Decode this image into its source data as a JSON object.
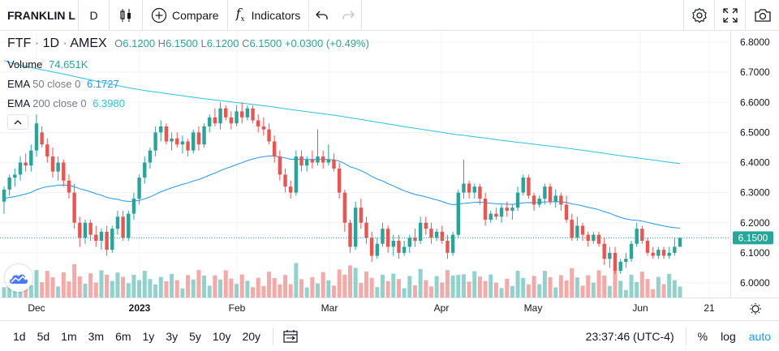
{
  "toolbar": {
    "symbol": "FRANKLIN L",
    "interval": "D",
    "compare_label": "Compare",
    "indicators_label": "Indicators"
  },
  "legend": {
    "ticker": "FTF",
    "interval": "1D",
    "exchange": "AMEX",
    "o_label": "O",
    "o_value": "6.1200",
    "h_label": "H",
    "h_value": "6.1500",
    "l_label": "L",
    "l_value": "6.1200",
    "c_label": "C",
    "c_value": "6.1500",
    "change": "+0.0300 (+0.49%)",
    "volume_label": "Volume",
    "volume_value": "74.651K",
    "ema50_label": "EMA",
    "ema50_params": "50 close 0",
    "ema50_value": "6.1727",
    "ema200_label": "EMA",
    "ema200_params": "200 close 0",
    "ema200_value": "6.3980"
  },
  "price_axis": [
    "6.8000",
    "6.7000",
    "6.6000",
    "6.5000",
    "6.4000",
    "6.3000",
    "6.2000",
    "6.1000",
    "6.0000"
  ],
  "last_price": "6.1500",
  "time_axis": [
    "Dec",
    "2023",
    "Feb",
    "Mar",
    "Apr",
    "May",
    "Jun",
    "21"
  ],
  "bottom": {
    "ranges": [
      "1d",
      "5d",
      "1m",
      "3m",
      "6m",
      "1y",
      "3y",
      "5y",
      "10y",
      "20y"
    ],
    "time": "23:37:46 (UTC-4)",
    "percent": "%",
    "log": "log",
    "auto": "auto"
  },
  "colors": {
    "up": "#26a69a",
    "down": "#ef5350",
    "ema50": "#2196f3",
    "ema200": "#26c6da",
    "accent": "#2196f3"
  },
  "chart_data": {
    "type": "candlestick",
    "ylim": [
      5.97,
      6.82
    ],
    "series": [
      {
        "name": "FTF",
        "ohlc": [
          [
            6.27,
            6.32,
            6.23,
            6.31
          ],
          [
            6.31,
            6.36,
            6.29,
            6.35
          ],
          [
            6.35,
            6.38,
            6.32,
            6.36
          ],
          [
            6.36,
            6.42,
            6.34,
            6.4
          ],
          [
            6.4,
            6.43,
            6.37,
            6.39
          ],
          [
            6.39,
            6.46,
            6.37,
            6.44
          ],
          [
            6.44,
            6.56,
            6.42,
            6.53
          ],
          [
            6.5,
            6.52,
            6.45,
            6.46
          ],
          [
            6.46,
            6.48,
            6.4,
            6.42
          ],
          [
            6.42,
            6.45,
            6.35,
            6.37
          ],
          [
            6.37,
            6.42,
            6.34,
            6.4
          ],
          [
            6.4,
            6.41,
            6.32,
            6.34
          ],
          [
            6.34,
            6.36,
            6.28,
            6.3
          ],
          [
            6.3,
            6.33,
            6.18,
            6.2
          ],
          [
            6.2,
            6.22,
            6.12,
            6.15
          ],
          [
            6.15,
            6.21,
            6.13,
            6.2
          ],
          [
            6.2,
            6.21,
            6.14,
            6.16
          ],
          [
            6.16,
            6.19,
            6.12,
            6.14
          ],
          [
            6.14,
            6.18,
            6.11,
            6.17
          ],
          [
            6.17,
            6.19,
            6.09,
            6.11
          ],
          [
            6.11,
            6.19,
            6.1,
            6.18
          ],
          [
            6.18,
            6.24,
            6.16,
            6.22
          ],
          [
            6.22,
            6.24,
            6.14,
            6.15
          ],
          [
            6.15,
            6.24,
            6.14,
            6.23
          ],
          [
            6.23,
            6.3,
            6.21,
            6.28
          ],
          [
            6.28,
            6.36,
            6.26,
            6.35
          ],
          [
            6.35,
            6.42,
            6.33,
            6.4
          ],
          [
            6.4,
            6.45,
            6.38,
            6.44
          ],
          [
            6.44,
            6.52,
            6.42,
            6.5
          ],
          [
            6.5,
            6.54,
            6.47,
            6.52
          ],
          [
            6.52,
            6.53,
            6.46,
            6.47
          ],
          [
            6.47,
            6.5,
            6.44,
            6.48
          ],
          [
            6.48,
            6.5,
            6.45,
            6.46
          ],
          [
            6.46,
            6.49,
            6.43,
            6.47
          ],
          [
            6.47,
            6.48,
            6.42,
            6.44
          ],
          [
            6.44,
            6.51,
            6.43,
            6.5
          ],
          [
            6.5,
            6.52,
            6.44,
            6.46
          ],
          [
            6.46,
            6.53,
            6.45,
            6.52
          ],
          [
            6.52,
            6.56,
            6.5,
            6.55
          ],
          [
            6.55,
            6.58,
            6.52,
            6.53
          ],
          [
            6.53,
            6.6,
            6.51,
            6.58
          ],
          [
            6.58,
            6.59,
            6.54,
            6.55
          ],
          [
            6.55,
            6.57,
            6.51,
            6.53
          ],
          [
            6.53,
            6.59,
            6.52,
            6.57
          ],
          [
            6.57,
            6.6,
            6.53,
            6.55
          ],
          [
            6.55,
            6.59,
            6.54,
            6.58
          ],
          [
            6.58,
            6.59,
            6.53,
            6.54
          ],
          [
            6.54,
            6.56,
            6.5,
            6.52
          ],
          [
            6.52,
            6.55,
            6.49,
            6.51
          ],
          [
            6.51,
            6.53,
            6.46,
            6.47
          ],
          [
            6.47,
            6.49,
            6.4,
            6.42
          ],
          [
            6.42,
            6.44,
            6.34,
            6.36
          ],
          [
            6.36,
            6.38,
            6.3,
            6.32
          ],
          [
            6.32,
            6.34,
            6.28,
            6.3
          ],
          [
            6.3,
            6.44,
            6.29,
            6.42
          ],
          [
            6.42,
            6.44,
            6.37,
            6.39
          ],
          [
            6.39,
            6.42,
            6.37,
            6.41
          ],
          [
            6.41,
            6.44,
            6.38,
            6.4
          ],
          [
            6.4,
            6.51,
            6.39,
            6.42
          ],
          [
            6.42,
            6.44,
            6.38,
            6.4
          ],
          [
            6.4,
            6.46,
            6.39,
            6.41
          ],
          [
            6.41,
            6.43,
            6.37,
            6.38
          ],
          [
            6.38,
            6.4,
            6.28,
            6.3
          ],
          [
            6.3,
            6.31,
            6.17,
            6.2
          ],
          [
            6.2,
            6.21,
            6.1,
            6.12
          ],
          [
            6.12,
            6.27,
            6.11,
            6.25
          ],
          [
            6.25,
            6.28,
            6.18,
            6.2
          ],
          [
            6.2,
            6.22,
            6.13,
            6.15
          ],
          [
            6.15,
            6.17,
            6.07,
            6.09
          ],
          [
            6.09,
            6.15,
            6.08,
            6.13
          ],
          [
            6.13,
            6.2,
            6.12,
            6.18
          ],
          [
            6.18,
            6.19,
            6.1,
            6.12
          ],
          [
            6.12,
            6.16,
            6.09,
            6.14
          ],
          [
            6.14,
            6.16,
            6.08,
            6.1
          ],
          [
            6.1,
            6.14,
            6.09,
            6.12
          ],
          [
            6.12,
            6.16,
            6.1,
            6.15
          ],
          [
            6.15,
            6.18,
            6.12,
            6.14
          ],
          [
            6.14,
            6.22,
            6.13,
            6.2
          ],
          [
            6.2,
            6.22,
            6.16,
            6.18
          ],
          [
            6.18,
            6.2,
            6.13,
            6.15
          ],
          [
            6.15,
            6.18,
            6.14,
            6.17
          ],
          [
            6.17,
            6.19,
            6.13,
            6.14
          ],
          [
            6.14,
            6.16,
            6.08,
            6.1
          ],
          [
            6.1,
            6.17,
            6.09,
            6.16
          ],
          [
            6.16,
            6.31,
            6.15,
            6.3
          ],
          [
            6.3,
            6.41,
            6.28,
            6.33
          ],
          [
            6.33,
            6.34,
            6.28,
            6.3
          ],
          [
            6.3,
            6.33,
            6.28,
            6.32
          ],
          [
            6.32,
            6.33,
            6.26,
            6.28
          ],
          [
            6.28,
            6.3,
            6.19,
            6.21
          ],
          [
            6.21,
            6.24,
            6.2,
            6.23
          ],
          [
            6.23,
            6.25,
            6.21,
            6.22
          ],
          [
            6.22,
            6.26,
            6.2,
            6.25
          ],
          [
            6.25,
            6.27,
            6.22,
            6.24
          ],
          [
            6.24,
            6.26,
            6.21,
            6.25
          ],
          [
            6.25,
            6.32,
            6.24,
            6.3
          ],
          [
            6.3,
            6.36,
            6.29,
            6.35
          ],
          [
            6.35,
            6.36,
            6.28,
            6.29
          ],
          [
            6.29,
            6.3,
            6.24,
            6.26
          ],
          [
            6.26,
            6.29,
            6.25,
            6.28
          ],
          [
            6.28,
            6.33,
            6.26,
            6.32
          ],
          [
            6.32,
            6.33,
            6.26,
            6.27
          ],
          [
            6.27,
            6.31,
            6.25,
            6.29
          ],
          [
            6.29,
            6.3,
            6.24,
            6.26
          ],
          [
            6.26,
            6.29,
            6.2,
            6.21
          ],
          [
            6.21,
            6.23,
            6.14,
            6.15
          ],
          [
            6.15,
            6.22,
            6.14,
            6.19
          ],
          [
            6.19,
            6.2,
            6.14,
            6.16
          ],
          [
            6.16,
            6.17,
            6.12,
            6.14
          ],
          [
            6.14,
            6.17,
            6.13,
            6.16
          ],
          [
            6.16,
            6.17,
            6.12,
            6.13
          ],
          [
            6.13,
            6.15,
            6.06,
            6.08
          ],
          [
            6.08,
            6.12,
            6.05,
            6.1
          ],
          [
            6.1,
            6.12,
            6.03,
            6.04
          ],
          [
            6.04,
            6.08,
            6.03,
            6.07
          ],
          [
            6.07,
            6.1,
            6.05,
            6.08
          ],
          [
            6.08,
            6.14,
            6.07,
            6.13
          ],
          [
            6.13,
            6.2,
            6.12,
            6.18
          ],
          [
            6.18,
            6.19,
            6.13,
            6.14
          ],
          [
            6.14,
            6.15,
            6.09,
            6.1
          ],
          [
            6.1,
            6.12,
            6.08,
            6.09
          ],
          [
            6.09,
            6.12,
            6.08,
            6.11
          ],
          [
            6.11,
            6.12,
            6.08,
            6.09
          ],
          [
            6.09,
            6.12,
            6.08,
            6.1
          ],
          [
            6.1,
            6.15,
            6.09,
            6.12
          ],
          [
            6.12,
            6.15,
            6.12,
            6.15
          ]
        ]
      },
      {
        "name": "EMA 50 close 0",
        "start": 6.28,
        "end": 6.1727
      },
      {
        "name": "EMA 200 close 0",
        "start": 6.74,
        "end": 6.398
      }
    ]
  }
}
